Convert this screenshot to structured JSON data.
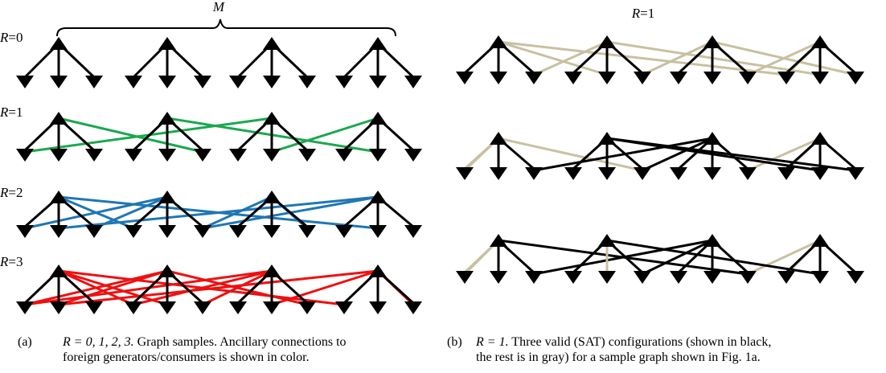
{
  "panel_a": {
    "M_label": "M",
    "rows": [
      {
        "label": "R = 0",
        "color": "#000000",
        "ancillary": []
      },
      {
        "label": "R = 1",
        "color": "#1aa84f",
        "ancillary": [
          [
            0,
            5
          ],
          [
            1,
            10
          ],
          [
            2,
            12
          ],
          [
            3,
            7
          ]
        ]
      },
      {
        "label": "R = 2",
        "color": "#1f77b4",
        "ancillary": [
          [
            0,
            10
          ],
          [
            0,
            15
          ],
          [
            1,
            2
          ],
          [
            1,
            12
          ],
          [
            2,
            5
          ],
          [
            2,
            8
          ],
          [
            3,
            1
          ],
          [
            3,
            5
          ]
        ]
      },
      {
        "label": "R = 3",
        "color": "#ee1111",
        "ancillary": [
          [
            0,
            4
          ],
          [
            0,
            9
          ],
          [
            0,
            15
          ],
          [
            1,
            0
          ],
          [
            1,
            8
          ],
          [
            1,
            13
          ],
          [
            2,
            3
          ],
          [
            2,
            5
          ],
          [
            2,
            12
          ],
          [
            3,
            1
          ],
          [
            3,
            7
          ],
          [
            3,
            11
          ]
        ]
      }
    ],
    "caption_tag": "(a)",
    "caption_math": "R = 0, 1, 2, 3.",
    "caption_text_1": " Graph samples. Ancillary connections to",
    "caption_text_2": "foreign generators/consumers is shown in color."
  },
  "panel_b": {
    "title": "R = 1",
    "gray_color": "#c8c0a0",
    "rows": [
      {
        "black_edges": [],
        "gray_edges": [
          [
            0,
            0
          ],
          [
            0,
            1
          ],
          [
            0,
            2
          ],
          [
            0,
            3
          ],
          [
            0,
            5
          ],
          [
            1,
            4
          ],
          [
            1,
            5
          ],
          [
            1,
            6
          ],
          [
            1,
            7
          ],
          [
            1,
            10
          ],
          [
            2,
            8
          ],
          [
            2,
            9
          ],
          [
            2,
            10
          ],
          [
            2,
            11
          ],
          [
            2,
            12
          ],
          [
            3,
            7
          ],
          [
            3,
            12
          ],
          [
            3,
            13
          ],
          [
            3,
            14
          ],
          [
            3,
            15
          ]
        ],
        "all_black": [
          [
            0,
            1
          ],
          [
            0,
            0
          ],
          [
            0,
            2
          ],
          [
            1,
            5
          ],
          [
            1,
            4
          ],
          [
            1,
            6
          ],
          [
            2,
            9
          ],
          [
            2,
            8
          ],
          [
            2,
            10
          ],
          [
            3,
            13
          ],
          [
            3,
            14
          ],
          [
            3,
            15
          ]
        ]
      },
      {
        "all_black": [
          [
            0,
            1
          ],
          [
            0,
            2
          ],
          [
            1,
            5
          ],
          [
            1,
            6
          ],
          [
            1,
            4
          ],
          [
            2,
            8
          ],
          [
            2,
            9
          ],
          [
            2,
            10
          ],
          [
            3,
            13
          ],
          [
            3,
            14
          ],
          [
            3,
            15
          ],
          [
            0,
            10
          ],
          [
            1,
            12
          ]
        ],
        "gray_edges": [
          [
            0,
            0
          ],
          [
            0,
            5
          ],
          [
            1,
            7
          ],
          [
            2,
            11
          ],
          [
            2,
            12
          ],
          [
            3,
            12
          ],
          [
            3,
            7
          ]
        ]
      },
      {
        "all_black": [
          [
            0,
            1
          ],
          [
            0,
            2
          ],
          [
            1,
            4
          ],
          [
            1,
            6
          ],
          [
            1,
            7
          ],
          [
            2,
            8
          ],
          [
            2,
            9
          ],
          [
            2,
            10
          ],
          [
            2,
            11
          ],
          [
            3,
            13
          ],
          [
            3,
            14
          ],
          [
            3,
            15
          ],
          [
            0,
            5
          ],
          [
            0,
            10
          ]
        ],
        "gray_edges": [
          [
            0,
            0
          ],
          [
            1,
            5
          ],
          [
            3,
            12
          ],
          [
            3,
            7
          ],
          [
            2,
            12
          ]
        ]
      }
    ],
    "caption_tag": "(b)",
    "caption_math": "R = 1.",
    "caption_text_1": " Three valid (SAT) configurations (shown in black,",
    "caption_text_2": "the rest is in gray) for a sample graph shown in Fig. 1a."
  }
}
